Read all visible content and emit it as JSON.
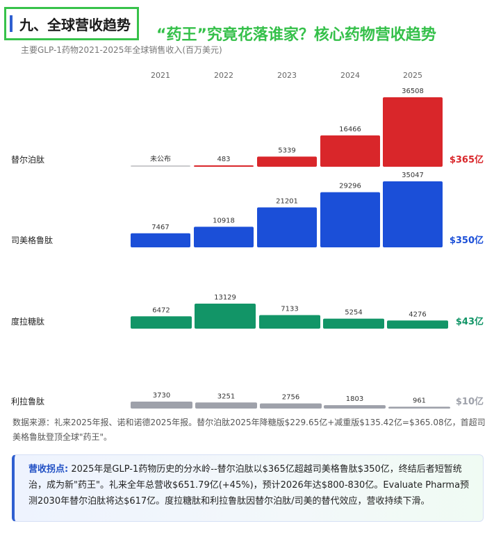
{
  "header": {
    "section_title": "九、全球营收趋势",
    "headline": "“药王”究竟花落谁家？核心药物营收趋势"
  },
  "colors": {
    "tirzepatide": "#d9262a",
    "semaglutide": "#1b4fd8",
    "dulaglutide": "#129567",
    "liraglutide": "#9ea1aa",
    "header_border": "#37c24a",
    "accent": "#2f5fd0"
  },
  "chart_data": {
    "type": "bar",
    "subtitle": "主要GLP-1药物2021-2025年全球销售收入(百万美元)",
    "categories": [
      "2021",
      "2022",
      "2023",
      "2024",
      "2025"
    ],
    "series": [
      {
        "name": "替尔泊肽",
        "values": [
          null,
          483,
          5339,
          16466,
          36508
        ],
        "labels": [
          "未公布",
          "483",
          "5339",
          "16466",
          "36508"
        ],
        "total_label": "$365亿",
        "color_key": "tirzepatide"
      },
      {
        "name": "司美格鲁肽",
        "values": [
          7467,
          10918,
          21201,
          29296,
          35047
        ],
        "labels": [
          "7467",
          "10918",
          "21201",
          "29296",
          "35047"
        ],
        "total_label": "$350亿",
        "color_key": "semaglutide"
      },
      {
        "name": "度拉糖肽",
        "values": [
          6472,
          13129,
          7133,
          5254,
          4276
        ],
        "labels": [
          "6472",
          "13129",
          "7133",
          "5254",
          "4276"
        ],
        "total_label": "$43亿",
        "color_key": "dulaglutide"
      },
      {
        "name": "利拉鲁肽",
        "values": [
          3730,
          3251,
          2756,
          1803,
          961
        ],
        "labels": [
          "3730",
          "3251",
          "2756",
          "1803",
          "961"
        ],
        "total_label": "$10亿",
        "color_key": "liraglutide"
      }
    ]
  },
  "source_note": "数据来源：礼来2025年报、诺和诺德2025年报。替尔泊肽2025年降糖版$229.65亿+减重版$135.42亿=$365.08亿，首超司美格鲁肽登顶全球\"药王\"。",
  "callout": {
    "label": "营收拐点:",
    "text": " 2025年是GLP-1药物历史的分水岭--替尔泊肽以$365亿超越司美格鲁肽$350亿，终结后者短暂统治，成为新\"药王\"。礼来全年总营收$651.79亿(+45%)，预计2026年达$800-830亿。Evaluate Pharma预测2030年替尔泊肽将达$617亿。度拉糖肽和利拉鲁肽因替尔泊肽/司美的替代效应，营收持续下滑。"
  }
}
